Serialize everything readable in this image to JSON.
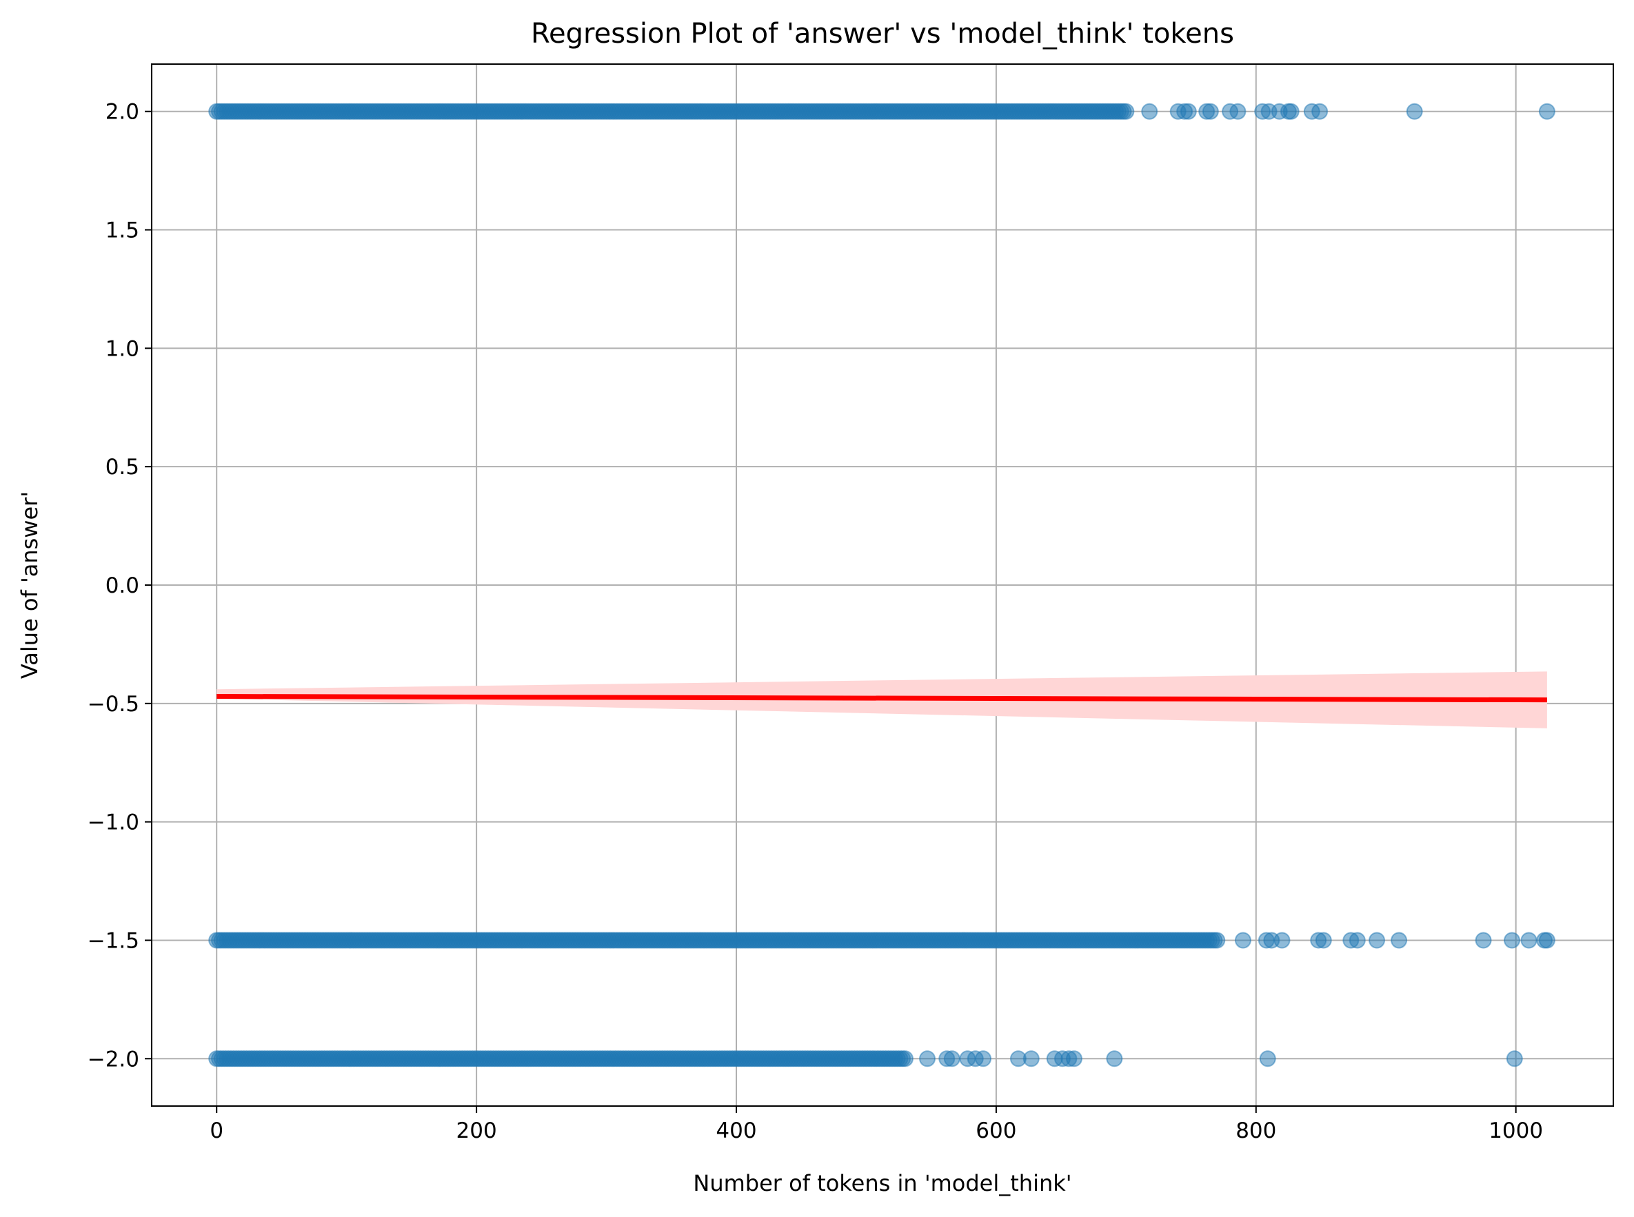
{
  "chart_data": {
    "type": "scatter",
    "title": "Regression Plot of 'answer' vs 'model_think' tokens",
    "xlabel": "Number of tokens in 'model_think'",
    "ylabel": "Value of 'answer'",
    "xlim": [
      -50,
      1075
    ],
    "ylim": [
      -2.2,
      2.2
    ],
    "xticks": [
      0,
      200,
      400,
      600,
      800,
      1000
    ],
    "xtick_labels": [
      "0",
      "200",
      "400",
      "600",
      "800",
      "1000"
    ],
    "yticks": [
      2.0,
      1.5,
      1.0,
      0.5,
      0.0,
      -0.5,
      -1.0,
      -1.5,
      -2.0
    ],
    "ytick_labels": [
      "2.0",
      "1.5",
      "1.0",
      "0.5",
      "0.0",
      "−0.5",
      "−1.0",
      "−1.5",
      "−2.0"
    ],
    "grid": true,
    "colors": {
      "points": "#1f77b4",
      "regression_line": "#ff0000",
      "confidence_band": "#ffd6d6"
    },
    "series": [
      {
        "y": 2.0,
        "dense_range": [
          0,
          700
        ],
        "x": [
          718,
          740,
          745,
          748,
          762,
          765,
          780,
          786,
          805,
          810,
          818,
          825,
          827,
          843,
          849,
          922,
          1024
        ]
      },
      {
        "y": -1.5,
        "dense_range": [
          0,
          770
        ],
        "x": [
          790,
          808,
          812,
          820,
          848,
          852,
          873,
          878,
          893,
          910,
          975,
          997,
          1010,
          1022,
          1024
        ]
      },
      {
        "y": -2.0,
        "dense_range": [
          0,
          530
        ],
        "x": [
          547,
          562,
          566,
          578,
          584,
          590,
          617,
          627,
          645,
          651,
          656,
          660,
          691,
          809,
          999
        ]
      }
    ],
    "regression": {
      "x": [
        0,
        1024
      ],
      "y": [
        -0.47,
        -0.485
      ],
      "ci_lower": [
        -0.48,
        -0.605
      ],
      "ci_upper": [
        -0.44,
        -0.365
      ]
    }
  }
}
